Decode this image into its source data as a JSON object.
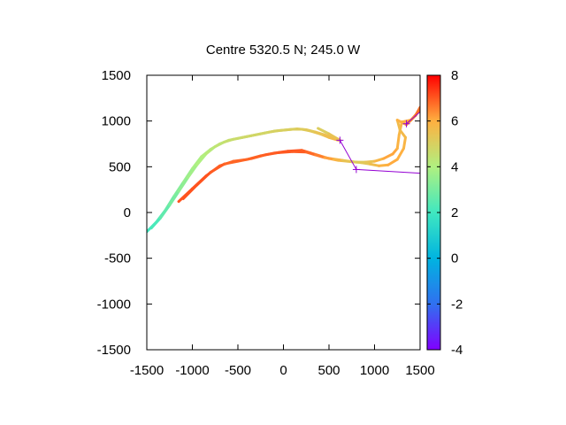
{
  "chart_data": {
    "type": "line",
    "title": "Centre 5320.5 N; 245.0  W",
    "xlabel": "",
    "ylabel": "",
    "xlim": [
      -1500,
      1500
    ],
    "ylim": [
      -1500,
      1500
    ],
    "x_ticks": [
      -1500,
      -1000,
      -500,
      0,
      500,
      1000,
      1500
    ],
    "y_ticks": [
      -1500,
      -1000,
      -500,
      0,
      500,
      1000,
      1500
    ],
    "colorbar": {
      "range": [
        -4,
        8
      ],
      "ticks": [
        -4,
        -2,
        0,
        2,
        4,
        6,
        8
      ],
      "palette": "rainbow"
    },
    "series": [
      {
        "points": [
          [
            -1500,
            -210,
            1.8
          ],
          [
            -1400,
            -110,
            2.2
          ],
          [
            -1300,
            20,
            2.6
          ],
          [
            -1200,
            180,
            3.0
          ],
          [
            -1100,
            330,
            3.4
          ],
          [
            -1000,
            480,
            3.8
          ],
          [
            -900,
            610,
            4.0
          ],
          [
            -800,
            690,
            4.2
          ],
          [
            -700,
            750,
            4.4
          ],
          [
            -600,
            790,
            4.6
          ],
          [
            -500,
            810,
            4.6
          ],
          [
            -400,
            830,
            4.7
          ],
          [
            -300,
            850,
            4.8
          ],
          [
            -200,
            870,
            4.8
          ],
          [
            -100,
            890,
            4.9
          ],
          [
            0,
            900,
            5.0
          ],
          [
            100,
            910,
            5.0
          ],
          [
            200,
            910,
            5.1
          ],
          [
            300,
            890,
            5.2
          ],
          [
            400,
            860,
            5.4
          ],
          [
            500,
            820,
            5.6
          ],
          [
            600,
            790,
            5.8
          ]
        ]
      },
      {
        "points": [
          [
            -1450,
            -170,
            2.0
          ],
          [
            -1350,
            -60,
            2.4
          ],
          [
            -1250,
            80,
            2.8
          ],
          [
            -1150,
            230,
            3.2
          ],
          [
            -1050,
            380,
            3.6
          ],
          [
            -950,
            520,
            3.9
          ],
          [
            -850,
            640,
            4.1
          ],
          [
            -750,
            720,
            4.3
          ],
          [
            -650,
            770,
            4.5
          ],
          [
            -550,
            800,
            4.6
          ],
          [
            -450,
            820,
            4.7
          ],
          [
            -350,
            840,
            4.8
          ],
          [
            -250,
            860,
            4.8
          ],
          [
            -150,
            880,
            4.9
          ],
          [
            -50,
            895,
            5.0
          ],
          [
            50,
            905,
            5.0
          ],
          [
            150,
            915,
            5.1
          ],
          [
            250,
            905,
            5.2
          ],
          [
            350,
            880,
            5.3
          ],
          [
            450,
            850,
            5.5
          ],
          [
            550,
            810,
            5.7
          ],
          [
            620,
            790,
            5.8
          ]
        ]
      },
      {
        "points": [
          [
            -1150,
            120,
            7.0
          ],
          [
            -1000,
            260,
            7.1
          ],
          [
            -850,
            400,
            7.0
          ],
          [
            -700,
            510,
            6.9
          ],
          [
            -550,
            560,
            6.8
          ],
          [
            -400,
            580,
            6.8
          ],
          [
            -250,
            620,
            6.9
          ],
          [
            -100,
            650,
            7.0
          ],
          [
            50,
            670,
            7.1
          ],
          [
            200,
            680,
            7.0
          ],
          [
            300,
            650,
            6.8
          ],
          [
            400,
            620,
            6.5
          ],
          [
            500,
            590,
            6.2
          ],
          [
            600,
            570,
            5.8
          ],
          [
            700,
            560,
            5.4
          ],
          [
            800,
            550,
            5.0
          ],
          [
            900,
            550,
            5.2
          ],
          [
            1000,
            560,
            5.6
          ],
          [
            1100,
            590,
            6.0
          ],
          [
            1200,
            640,
            6.2
          ],
          [
            1250,
            700,
            6.0
          ],
          [
            1270,
            850,
            5.8
          ],
          [
            1300,
            990,
            5.8
          ],
          [
            1400,
            1010,
            6.2
          ],
          [
            1500,
            1120,
            6.4
          ]
        ]
      },
      {
        "points": [
          [
            -1100,
            150,
            7.0
          ],
          [
            -950,
            300,
            7.1
          ],
          [
            -800,
            440,
            7.0
          ],
          [
            -650,
            530,
            6.9
          ],
          [
            -500,
            560,
            6.8
          ],
          [
            -350,
            590,
            6.9
          ],
          [
            -200,
            630,
            6.9
          ],
          [
            -50,
            655,
            7.0
          ],
          [
            100,
            665,
            7.0
          ],
          [
            250,
            660,
            6.9
          ],
          [
            350,
            630,
            6.7
          ],
          [
            450,
            600,
            6.4
          ],
          [
            550,
            585,
            6.0
          ],
          [
            650,
            570,
            5.6
          ],
          [
            750,
            555,
            5.2
          ],
          [
            850,
            545,
            5.1
          ],
          [
            950,
            530,
            5.4
          ],
          [
            1050,
            510,
            5.8
          ],
          [
            1150,
            520,
            6.0
          ],
          [
            1250,
            580,
            6.1
          ],
          [
            1320,
            700,
            5.9
          ],
          [
            1340,
            820,
            5.8
          ],
          [
            1280,
            900,
            5.6
          ],
          [
            1250,
            1010,
            5.7
          ],
          [
            1350,
            960,
            6.2
          ],
          [
            1450,
            1060,
            6.6
          ],
          [
            1500,
            1150,
            6.8
          ]
        ]
      },
      {
        "points": [
          [
            380,
            920,
            5.0
          ],
          [
            500,
            860,
            5.2
          ],
          [
            620,
            790,
            5.6
          ]
        ]
      }
    ],
    "track": {
      "color": "#9400d3",
      "points": [
        [
          620,
          790
        ],
        [
          800,
          470
        ],
        [
          1500,
          430
        ]
      ],
      "markers": [
        [
          620,
          790
        ],
        [
          800,
          470
        ],
        [
          1350,
          970
        ]
      ],
      "extra": [
        [
          1350,
          970
        ],
        [
          1500,
          1100
        ]
      ]
    }
  }
}
